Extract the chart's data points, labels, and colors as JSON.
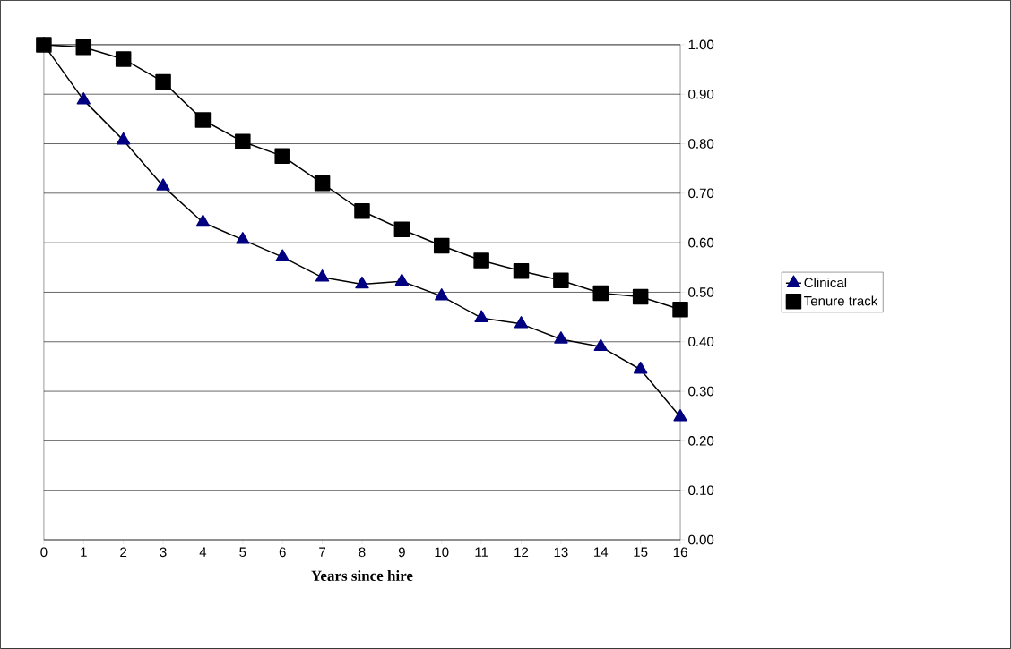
{
  "chart_data": {
    "type": "line",
    "xlabel": "Years since hire",
    "x": [
      0,
      1,
      2,
      3,
      4,
      5,
      6,
      7,
      8,
      9,
      10,
      11,
      12,
      13,
      14,
      15,
      16
    ],
    "series": [
      {
        "name": "Clinical",
        "color": "#000080",
        "marker": "triangle",
        "values": [
          1.0,
          0.888,
          0.807,
          0.714,
          0.641,
          0.606,
          0.571,
          0.53,
          0.516,
          0.522,
          0.492,
          0.448,
          0.436,
          0.405,
          0.39,
          0.344,
          0.248
        ]
      },
      {
        "name": "Tenure track",
        "color": "#000000",
        "marker": "square",
        "values": [
          1.0,
          0.995,
          0.971,
          0.925,
          0.848,
          0.804,
          0.775,
          0.72,
          0.664,
          0.627,
          0.594,
          0.564,
          0.543,
          0.524,
          0.498,
          0.491,
          0.465
        ]
      }
    ],
    "xlim": [
      0,
      16
    ],
    "xticks": [
      0,
      1,
      2,
      3,
      4,
      5,
      6,
      7,
      8,
      9,
      10,
      11,
      12,
      13,
      14,
      15,
      16
    ],
    "ylim": [
      0,
      1
    ],
    "yticks": [
      {
        "value": 0,
        "label": "0.00"
      },
      {
        "value": 0.1,
        "label": "0.10"
      },
      {
        "value": 0.2,
        "label": "0.20"
      },
      {
        "value": 0.3,
        "label": "0.30"
      },
      {
        "value": 0.4,
        "label": "0.40"
      },
      {
        "value": 0.5,
        "label": "0.50"
      },
      {
        "value": 0.6,
        "label": "0.60"
      },
      {
        "value": 0.7,
        "label": "0.70"
      },
      {
        "value": 0.8,
        "label": "0.80"
      },
      {
        "value": 0.9,
        "label": "0.90"
      },
      {
        "value": 1,
        "label": "1.00"
      }
    ],
    "grid": "y",
    "legend": "right",
    "line_style": "solid"
  }
}
